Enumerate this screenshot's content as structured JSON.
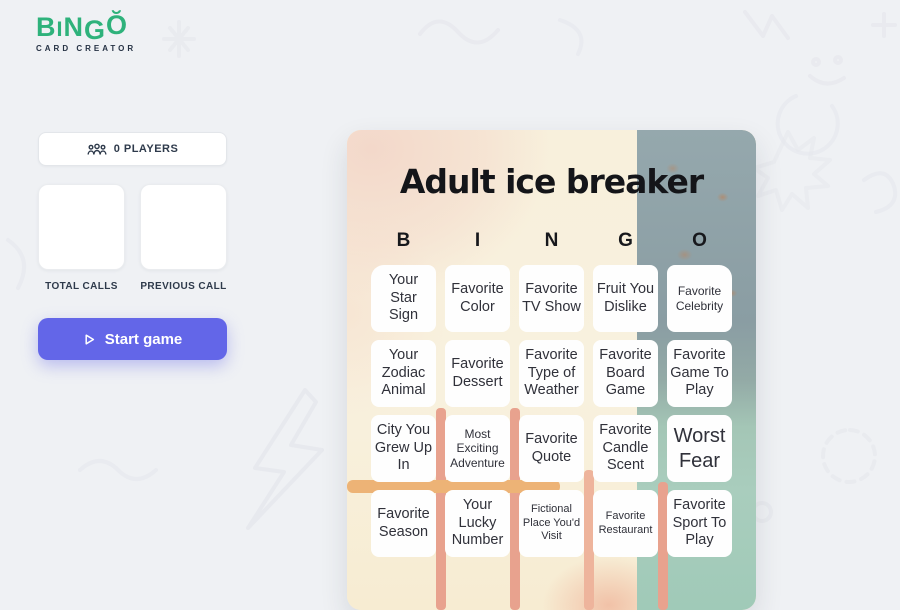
{
  "logo": {
    "brand": "BINGŎ",
    "subtitle": "CARD CREATOR"
  },
  "sidebar": {
    "players_label": "0 PLAYERS",
    "total_calls_label": "TOTAL CALLS",
    "previous_call_label": "PREVIOUS CALL",
    "start_button_label": "Start game"
  },
  "card": {
    "title": "Adult ice breaker",
    "bingo_letters": [
      "B",
      "I",
      "N",
      "G",
      "O"
    ],
    "rows": [
      [
        {
          "label": "Your Star Sign",
          "size": "md"
        },
        {
          "label": "Favorite Color",
          "size": "md"
        },
        {
          "label": "Favorite TV Show",
          "size": "md"
        },
        {
          "label": "Fruit You Dislike",
          "size": "md"
        },
        {
          "label": "Favorite Celebrity",
          "size": "sm"
        }
      ],
      [
        {
          "label": "Your Zodiac Animal",
          "size": "md"
        },
        {
          "label": "Favorite Dessert",
          "size": "md"
        },
        {
          "label": "Favorite Type of Weather",
          "size": "md"
        },
        {
          "label": "Favorite Board Game",
          "size": "md"
        },
        {
          "label": "Favorite Game To Play",
          "size": "md"
        }
      ],
      [
        {
          "label": "City You Grew Up In",
          "size": "md"
        },
        {
          "label": "Most Exciting Adventure",
          "size": "sm"
        },
        {
          "label": "Favorite Quote",
          "size": "md"
        },
        {
          "label": "Favorite Candle Scent",
          "size": "md"
        },
        {
          "label": "Worst Fear",
          "size": "lg"
        }
      ],
      [
        {
          "label": "Favorite Season",
          "size": "md"
        },
        {
          "label": "Your Lucky Number",
          "size": "md"
        },
        {
          "label": "Fictional Place You'd Visit",
          "size": "xs"
        },
        {
          "label": "Favorite Restaurant",
          "size": "xs"
        },
        {
          "label": "Favorite Sport To Play",
          "size": "md"
        }
      ]
    ]
  },
  "colors": {
    "brand_green": "#2eb27b",
    "button_indigo": "#6366e8",
    "page_background": "#eff1f4",
    "card_cream": "#f8f0dc",
    "card_peach": "#f3d8ca",
    "card_slate": "#8ea3a9",
    "card_teal": "#a8ccbc",
    "card_coral": "#e8a28e",
    "card_orange": "#edb376",
    "text_dark": "#2e3a4b"
  }
}
